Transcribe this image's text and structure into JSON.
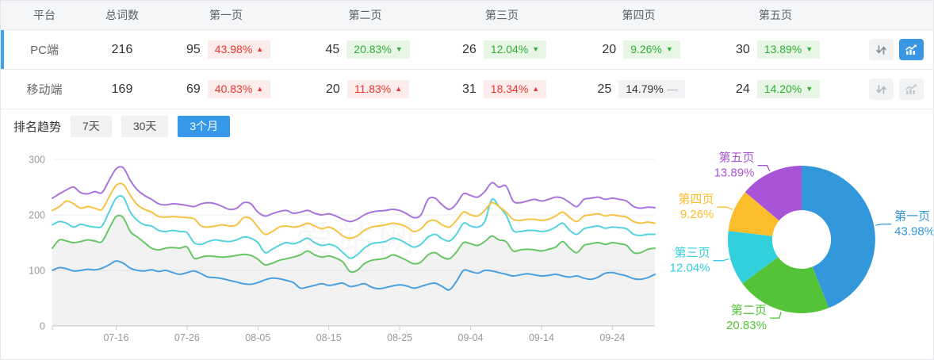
{
  "table": {
    "headers": [
      "平台",
      "总词数",
      "第一页",
      "第二页",
      "第三页",
      "第四页",
      "第五页"
    ],
    "rows": [
      {
        "platform": "PC端",
        "total": "216",
        "selected": true,
        "chart_active": true,
        "pages": [
          {
            "count": "95",
            "pct": "43.98%",
            "trend": "up",
            "arrow": "▲"
          },
          {
            "count": "45",
            "pct": "20.83%",
            "trend": "down",
            "arrow": "▼"
          },
          {
            "count": "26",
            "pct": "12.04%",
            "trend": "down",
            "arrow": "▼"
          },
          {
            "count": "20",
            "pct": "9.26%",
            "trend": "down",
            "arrow": "▼"
          },
          {
            "count": "30",
            "pct": "13.89%",
            "trend": "down",
            "arrow": "▼"
          }
        ]
      },
      {
        "platform": "移动端",
        "total": "169",
        "selected": false,
        "chart_active": false,
        "pages": [
          {
            "count": "69",
            "pct": "40.83%",
            "trend": "up",
            "arrow": "▲"
          },
          {
            "count": "20",
            "pct": "11.83%",
            "trend": "up",
            "arrow": "▲"
          },
          {
            "count": "31",
            "pct": "18.34%",
            "trend": "up",
            "arrow": "▲"
          },
          {
            "count": "25",
            "pct": "14.79%",
            "trend": "flat",
            "arrow": "—"
          },
          {
            "count": "24",
            "pct": "14.20%",
            "trend": "down",
            "arrow": "▼"
          }
        ]
      }
    ]
  },
  "trend": {
    "label": "排名趋势",
    "tabs": [
      {
        "label": "7天",
        "active": false
      },
      {
        "label": "30天",
        "active": false
      },
      {
        "label": "3个月",
        "active": true
      }
    ]
  },
  "watermark": "爱站网",
  "colors": {
    "accent_blue": "#3598e8",
    "up_red": "#e8382c",
    "down_green": "#2fae36",
    "line_blue": "#4ba0e0",
    "line_green": "#69c667",
    "line_cyan": "#55d2e0",
    "line_yellow": "#f6c244",
    "line_purple": "#aa74de"
  },
  "chart_data": [
    {
      "type": "line",
      "stacked": true,
      "title": "排名趋势 (3个月)",
      "xlabel": "",
      "ylabel": "",
      "ylim": [
        0,
        300
      ],
      "yticks": [
        0,
        100,
        200,
        300
      ],
      "grid": true,
      "total_days": 85,
      "x_tick_days": [
        9,
        19,
        29,
        39,
        49,
        59,
        69,
        79
      ],
      "x_tick_labels": [
        "07-16",
        "07-26",
        "08-05",
        "08-15",
        "08-25",
        "09-04",
        "09-14",
        "09-24"
      ],
      "series": [
        {
          "name": "第一页",
          "color": "#4ba0e0",
          "area": false,
          "values": [
            100,
            105,
            103,
            99,
            100,
            102,
            101,
            104,
            110,
            117,
            113,
            104,
            100,
            99,
            101,
            98,
            100,
            96,
            93,
            96,
            99,
            94,
            88,
            87,
            85,
            82,
            79,
            76,
            75,
            78,
            83,
            86,
            85,
            82,
            78,
            68,
            70,
            73,
            76,
            73,
            75,
            77,
            71,
            73,
            76,
            70,
            67,
            69,
            72,
            74,
            72,
            68,
            71,
            75,
            77,
            71,
            65,
            80,
            100,
            98,
            95,
            100,
            99,
            96,
            93,
            90,
            92,
            94,
            92,
            90,
            91,
            93,
            90,
            88,
            90,
            86,
            84,
            88,
            95,
            96,
            93,
            90,
            85,
            84,
            87,
            93
          ]
        },
        {
          "name": "第二页",
          "color": "#69c667",
          "area": true,
          "values": [
            140,
            155,
            153,
            150,
            152,
            155,
            153,
            152,
            175,
            197,
            195,
            170,
            160,
            150,
            140,
            137,
            140,
            141,
            140,
            142,
            122,
            124,
            126,
            125,
            124,
            125,
            127,
            129,
            127,
            120,
            110,
            113,
            118,
            121,
            124,
            128,
            135,
            128,
            124,
            126,
            122,
            115,
            98,
            100,
            112,
            118,
            120,
            122,
            128,
            124,
            118,
            112,
            115,
            128,
            132,
            124,
            121,
            133,
            150,
            148,
            145,
            152,
            162,
            155,
            152,
            135,
            137,
            138,
            137,
            135,
            138,
            142,
            152,
            140,
            132,
            145,
            148,
            150,
            147,
            150,
            148,
            145,
            132,
            132,
            138,
            140
          ]
        },
        {
          "name": "第三页",
          "color": "#55d2e0",
          "area": false,
          "values": [
            182,
            188,
            185,
            178,
            183,
            180,
            178,
            180,
            205,
            230,
            232,
            205,
            190,
            182,
            180,
            172,
            170,
            172,
            170,
            168,
            150,
            147,
            152,
            155,
            153,
            152,
            155,
            160,
            158,
            150,
            132,
            138,
            145,
            150,
            148,
            152,
            158,
            150,
            145,
            147,
            143,
            132,
            122,
            128,
            140,
            148,
            150,
            152,
            158,
            155,
            148,
            142,
            147,
            160,
            165,
            157,
            153,
            165,
            185,
            180,
            178,
            188,
            228,
            215,
            200,
            172,
            170,
            172,
            172,
            170,
            172,
            178,
            185,
            172,
            165,
            175,
            178,
            180,
            176,
            178,
            177,
            175,
            165,
            163,
            165,
            165
          ]
        },
        {
          "name": "第四页",
          "color": "#f6c244",
          "area": false,
          "values": [
            208,
            215,
            225,
            220,
            212,
            215,
            212,
            210,
            232,
            253,
            255,
            235,
            218,
            210,
            205,
            197,
            196,
            197,
            196,
            195,
            193,
            180,
            178,
            180,
            182,
            180,
            182,
            195,
            193,
            178,
            165,
            170,
            178,
            180,
            178,
            180,
            185,
            180,
            175,
            178,
            172,
            162,
            158,
            162,
            172,
            178,
            180,
            182,
            185,
            183,
            178,
            170,
            175,
            188,
            190,
            182,
            178,
            190,
            205,
            200,
            198,
            208,
            222,
            215,
            205,
            192,
            190,
            192,
            192,
            190,
            192,
            198,
            205,
            195,
            188,
            198,
            200,
            202,
            198,
            200,
            198,
            196,
            188,
            185,
            187,
            185
          ]
        },
        {
          "name": "第五页",
          "color": "#aa74de",
          "area": false,
          "values": [
            230,
            238,
            245,
            250,
            240,
            238,
            242,
            240,
            262,
            283,
            285,
            262,
            245,
            235,
            228,
            220,
            218,
            220,
            219,
            217,
            215,
            220,
            222,
            220,
            215,
            210,
            212,
            222,
            220,
            205,
            198,
            202,
            206,
            208,
            203,
            205,
            208,
            203,
            200,
            202,
            198,
            192,
            188,
            192,
            200,
            205,
            207,
            208,
            210,
            208,
            202,
            195,
            200,
            228,
            230,
            218,
            210,
            220,
            238,
            235,
            232,
            242,
            258,
            250,
            252,
            225,
            222,
            225,
            228,
            225,
            228,
            232,
            230,
            222,
            215,
            228,
            230,
            232,
            228,
            230,
            228,
            225,
            215,
            212,
            214,
            213
          ]
        }
      ]
    },
    {
      "type": "pie",
      "donut": true,
      "title": "",
      "slices": [
        {
          "name": "第一页",
          "value": 43.98,
          "label": "43.98%",
          "color": "#3398db"
        },
        {
          "name": "第二页",
          "value": 20.83,
          "label": "20.83%",
          "color": "#54c337"
        },
        {
          "name": "第三页",
          "value": 12.04,
          "label": "12.04%",
          "color": "#32cfdc"
        },
        {
          "name": "第四页",
          "value": 9.26,
          "label": "9.26%",
          "color": "#fabe2c"
        },
        {
          "name": "第五页",
          "value": 13.89,
          "label": "13.89%",
          "color": "#a854d8"
        }
      ]
    }
  ]
}
